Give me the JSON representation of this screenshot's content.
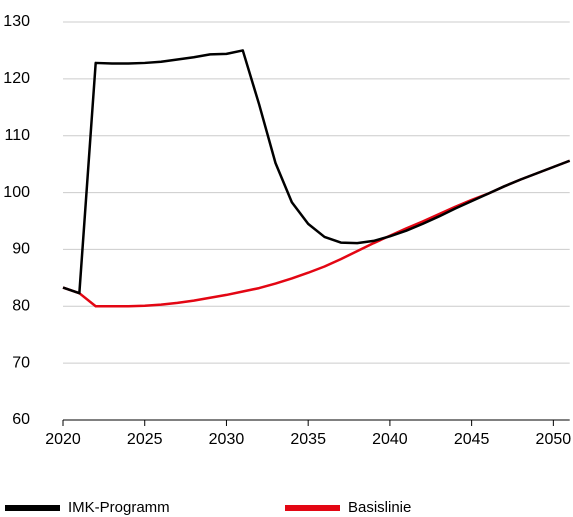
{
  "chart_data": {
    "type": "line",
    "x": [
      2020,
      2021,
      2022,
      2023,
      2024,
      2025,
      2026,
      2027,
      2028,
      2029,
      2030,
      2031,
      2032,
      2033,
      2034,
      2035,
      2036,
      2037,
      2038,
      2039,
      2040,
      2041,
      2042,
      2043,
      2044,
      2045,
      2046,
      2047,
      2048,
      2049,
      2050,
      2051
    ],
    "series": [
      {
        "name": "IMK-Programm",
        "color": "#000000",
        "values": [
          83.3,
          82.3,
          122.8,
          122.7,
          122.7,
          122.8,
          123.0,
          123.4,
          123.8,
          124.3,
          124.4,
          125.0,
          115.5,
          105.2,
          98.3,
          94.5,
          92.2,
          91.2,
          91.1,
          91.5,
          92.3,
          93.3,
          94.5,
          95.8,
          97.2,
          98.5,
          99.8,
          101.1,
          102.3,
          103.4,
          104.5,
          105.6
        ]
      },
      {
        "name": "Basislinie",
        "color": "#e30613",
        "values": [
          83.3,
          82.3,
          80.0,
          80.0,
          80.0,
          80.1,
          80.3,
          80.6,
          81.0,
          81.5,
          82.0,
          82.6,
          83.2,
          84.0,
          84.9,
          85.9,
          87.0,
          88.3,
          89.7,
          91.1,
          92.4,
          93.7,
          94.9,
          96.2,
          97.5,
          98.7,
          99.8,
          101.1,
          102.3,
          103.4,
          104.5,
          105.6
        ]
      }
    ],
    "xlim": [
      2020,
      2051
    ],
    "xticks": [
      2020,
      2025,
      2030,
      2035,
      2040,
      2045,
      2050
    ],
    "ylim": [
      60,
      130
    ],
    "yticks": [
      60,
      70,
      80,
      90,
      100,
      110,
      120,
      130
    ],
    "grid": true,
    "legend": "bottom"
  }
}
